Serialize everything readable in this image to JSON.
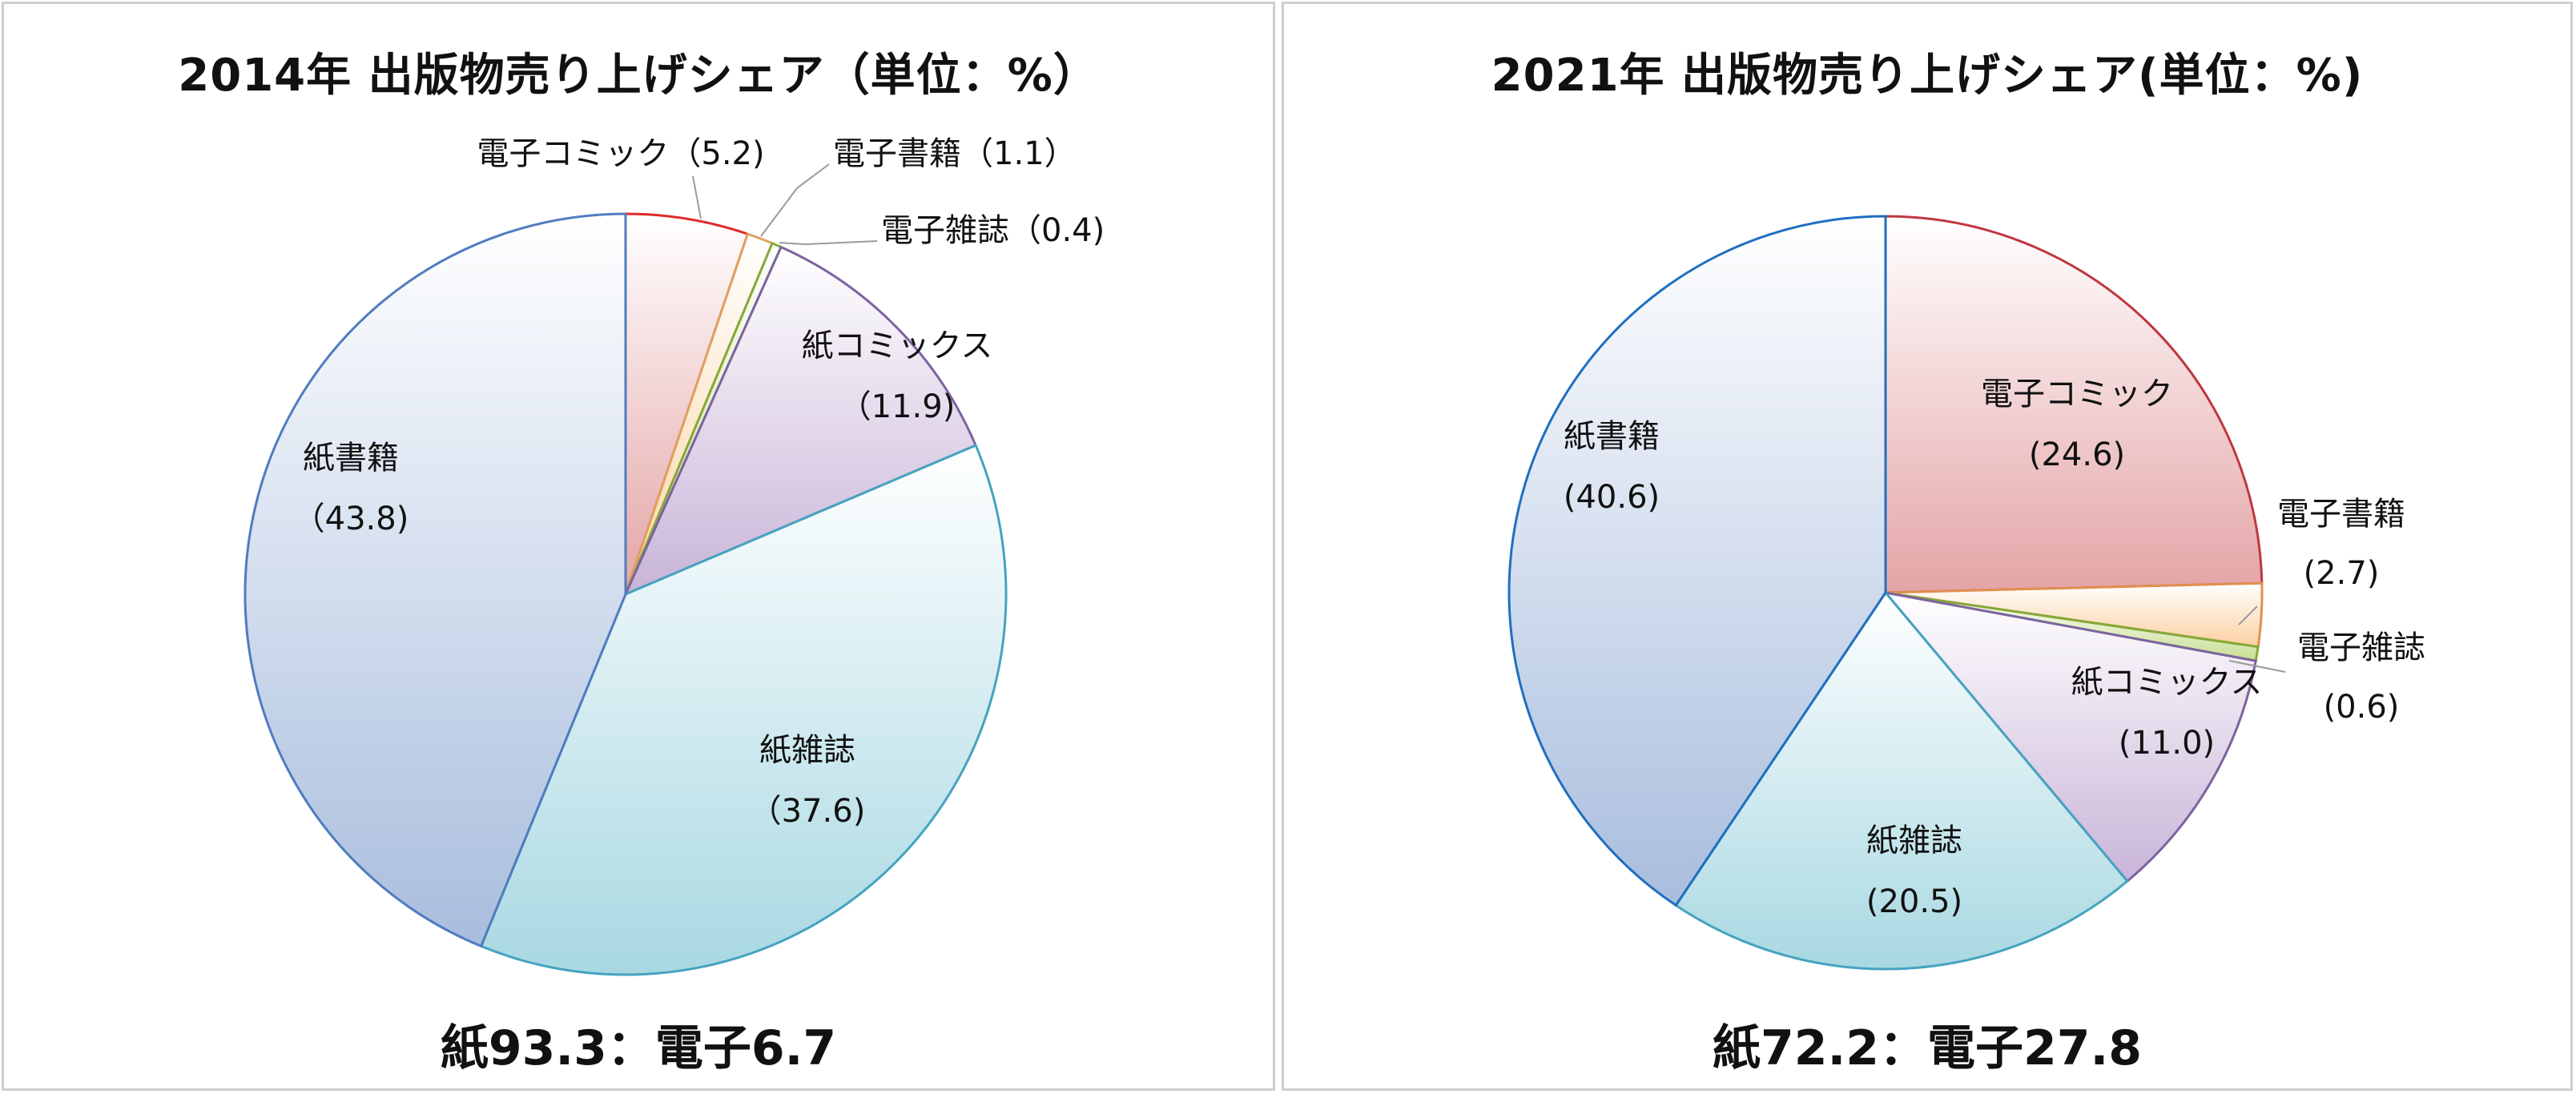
{
  "chart_data": [
    {
      "type": "pie",
      "title": "2014年 出版物売り上げシェア（単位：%）",
      "summary": "紙93.3：電子6.7",
      "slices": [
        {
          "name": "電子コミック",
          "value_label": "（5.2)",
          "value": 5.2,
          "color": "#e4a4a6",
          "border": "#e02a2a"
        },
        {
          "name": "電子書籍",
          "value_label": "（1.1）",
          "value": 1.1,
          "color": "#fbd5a6",
          "border": "#e0a060"
        },
        {
          "name": "電子雑誌",
          "value_label": "（0.4)",
          "value": 0.4,
          "color": "#c9df95",
          "border": "#86a838"
        },
        {
          "name": "紙コミックス",
          "value_label": "（11.9)",
          "value": 11.9,
          "color": "#c8b4d8",
          "border": "#7c63a0"
        },
        {
          "name": "紙雑誌",
          "value_label": "（37.6)",
          "value": 37.6,
          "color": "#a8d8e2",
          "border": "#45a3c0"
        },
        {
          "name": "紙書籍",
          "value_label": "（43.8)",
          "value": 43.8,
          "color": "#a8bddd",
          "border": "#4f7cbf"
        }
      ]
    },
    {
      "type": "pie",
      "title": "2021年 出版物売り上げシェア(単位：%)",
      "summary": "紙72.2：電子27.8",
      "slices": [
        {
          "name": "電子コミック",
          "value_label": "(24.6)",
          "value": 24.6,
          "color": "#e4a4a6",
          "border": "#c0373f"
        },
        {
          "name": "電子書籍",
          "value_label": "(2.7)",
          "value": 2.7,
          "color": "#fbd0a0",
          "border": "#e09050"
        },
        {
          "name": "電子雑誌",
          "value_label": "(0.6)",
          "value": 0.6,
          "color": "#c9df95",
          "border": "#86a838"
        },
        {
          "name": "紙コミックス",
          "value_label": "(11.0)",
          "value": 11.0,
          "color": "#c8b4d8",
          "border": "#7c63a0"
        },
        {
          "name": "紙雑誌",
          "value_label": "(20.5)",
          "value": 20.5,
          "color": "#a8d8e2",
          "border": "#45a3c0"
        },
        {
          "name": "紙書籍",
          "value_label": "(40.6)",
          "value": 40.6,
          "color": "#a8bddd",
          "border": "#1f6fbf"
        }
      ]
    }
  ]
}
